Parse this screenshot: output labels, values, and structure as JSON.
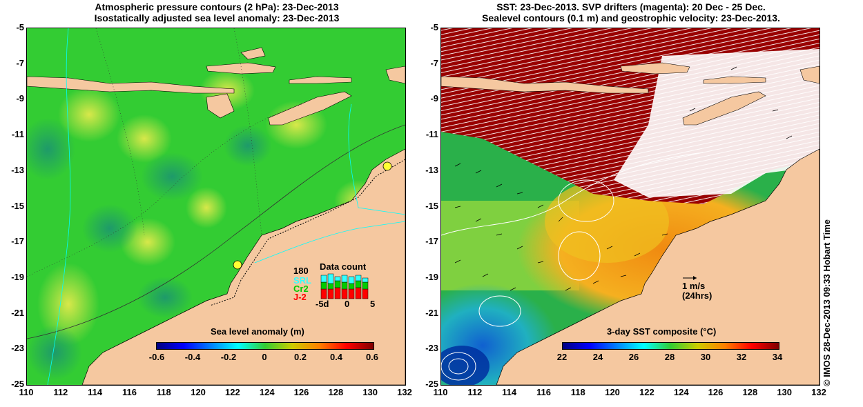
{
  "left_panel": {
    "title_line1": "Atmospheric pressure contours (2 hPa): 23-Dec-2013",
    "title_line2": "Isostatically adjusted sea level anomaly: 23-Dec-2013",
    "colorbar_title": "Sea level anomaly (m)",
    "colorbar_ticks": [
      "-0.6",
      "-0.4",
      "-0.2",
      "0",
      "0.2",
      "0.4",
      "0.6"
    ],
    "data_count": {
      "title": "Data count",
      "max_label": "180",
      "satellites": [
        {
          "name": "SRL",
          "color": "#33ffff"
        },
        {
          "name": "Cr2",
          "color": "#00cc00"
        },
        {
          "name": "J-2",
          "color": "#ff0000"
        }
      ],
      "axis_labels": [
        "-5d",
        "0",
        "5"
      ]
    }
  },
  "right_panel": {
    "title_line1": "SST: 23-Dec-2013. SVP drifters (magenta): 20 Dec - 25 Dec.",
    "title_line2": "Sealevel contours (0.1 m) and geostrophic velocity: 23-Dec-2013.",
    "colorbar_title": "3-day SST composite (°C)",
    "colorbar_ticks": [
      "22",
      "24",
      "26",
      "28",
      "30",
      "32",
      "34"
    ],
    "velocity_legend_speed": "1 m/s",
    "velocity_legend_duration": "(24hrs)"
  },
  "axes": {
    "lat_ticks": [
      "-5",
      "-7",
      "-9",
      "-11",
      "-13",
      "-15",
      "-17",
      "-19",
      "-21",
      "-23",
      "-25"
    ],
    "lon_ticks": [
      "110",
      "112",
      "114",
      "116",
      "118",
      "120",
      "122",
      "124",
      "126",
      "128",
      "130",
      "132"
    ]
  },
  "credit": "© IMOS 28-Dec-2013 09:33 Hobart Time",
  "colors": {
    "land": "#f5c8a0",
    "ocean_left": "#33cc33",
    "no_data": "#990000",
    "coast_outline": "#000000"
  }
}
